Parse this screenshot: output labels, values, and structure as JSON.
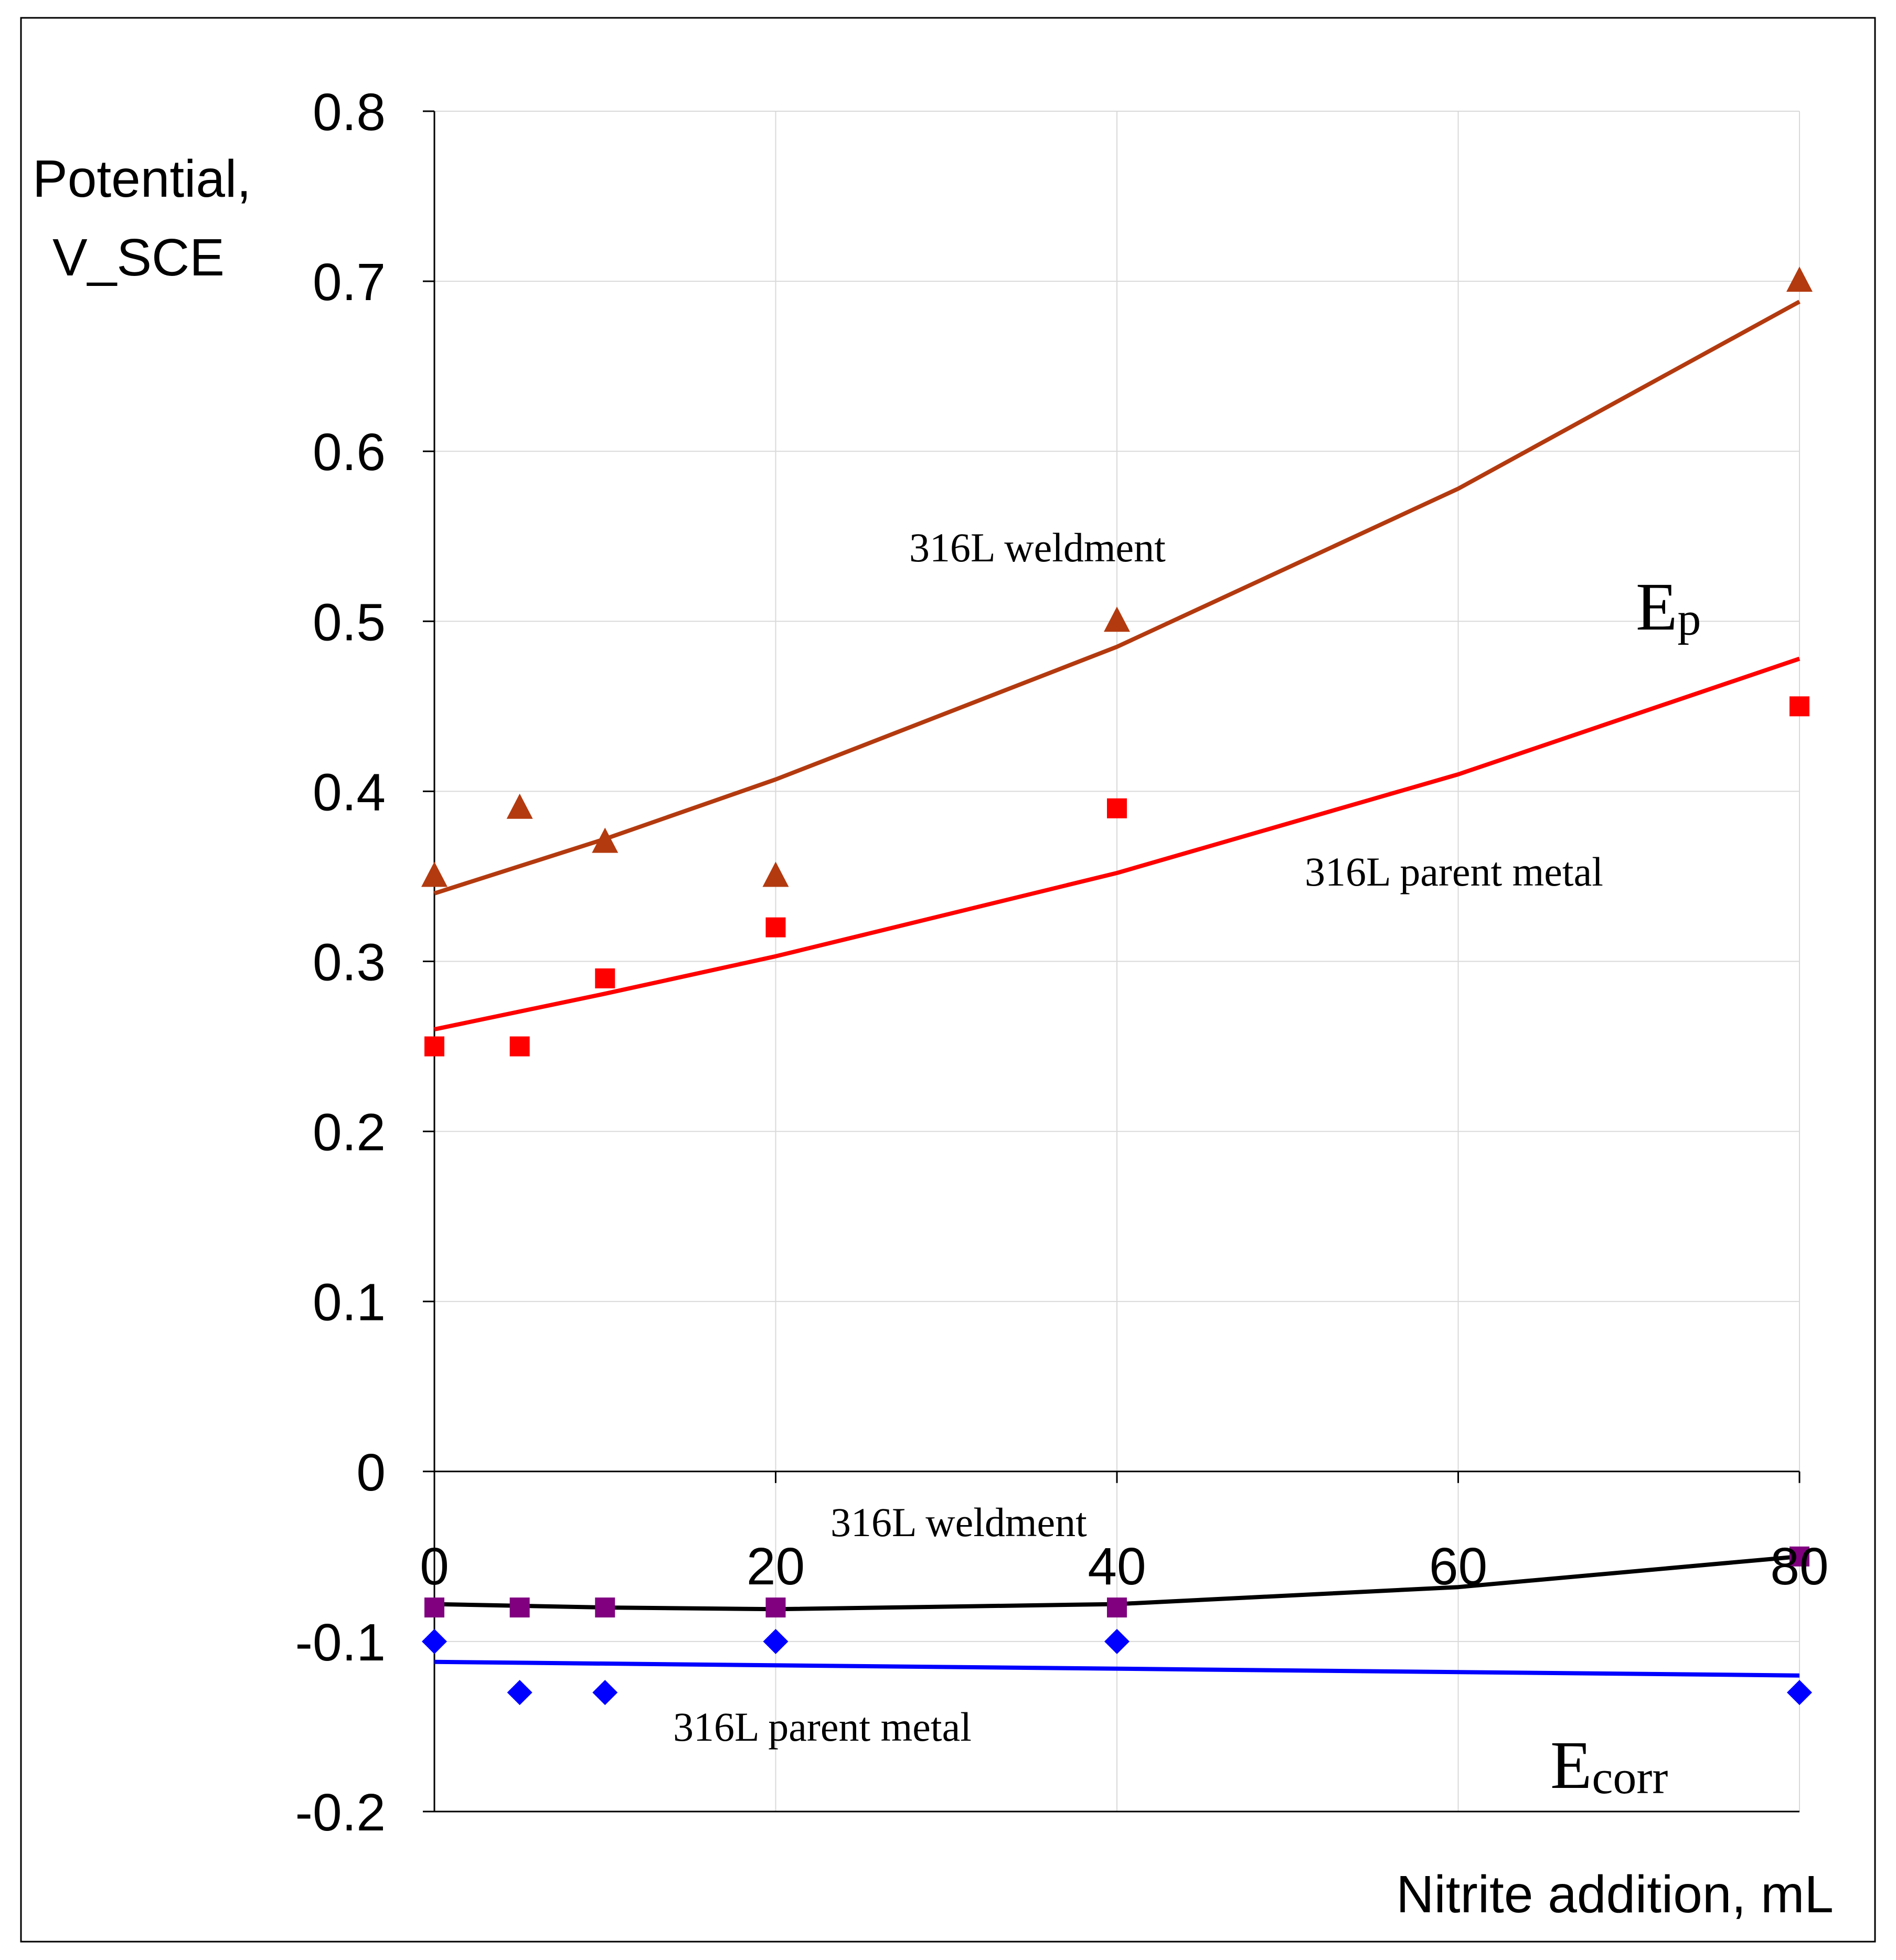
{
  "chart_data": {
    "type": "scatter",
    "title": "",
    "xlabel": "Nitrite addition, mL",
    "ylabel_line1": "Potential,",
    "ylabel_line2": "V_SCE",
    "xlim": [
      0,
      80
    ],
    "ylim": [
      -0.2,
      0.8
    ],
    "xticks": [
      0,
      20,
      40,
      60,
      80
    ],
    "yticks": [
      -0.2,
      -0.1,
      0,
      0.1,
      0.2,
      0.3,
      0.4,
      0.5,
      0.6,
      0.7,
      0.8
    ],
    "grid": true,
    "legend": "none",
    "annotations": {
      "ep_weldment": "316L weldment",
      "ep_parent": "316L parent metal",
      "ecorr_weldment": "316L weldment",
      "ecorr_parent": "316L parent metal",
      "ep_main": "E",
      "ep_sub": "p",
      "ecorr_main": "E",
      "ecorr_sub": "corr"
    },
    "series": [
      {
        "marker": "triangle",
        "color": "#b33a0f",
        "x": [
          0,
          5,
          10,
          20,
          40,
          80
        ],
        "y": [
          0.35,
          0.39,
          0.37,
          0.35,
          0.5,
          0.7
        ],
        "trend": {
          "color": "#b33a0f",
          "x": [
            0,
            10,
            20,
            40,
            60,
            80
          ],
          "y": [
            0.34,
            0.372,
            0.407,
            0.485,
            0.578,
            0.688
          ]
        }
      },
      {
        "marker": "square",
        "color": "#ff0000",
        "x": [
          0,
          5,
          10,
          20,
          40,
          80
        ],
        "y": [
          0.25,
          0.25,
          0.29,
          0.32,
          0.39,
          0.45
        ],
        "trend": {
          "color": "#ff0000",
          "x": [
            0,
            10,
            20,
            40,
            60,
            80
          ],
          "y": [
            0.26,
            0.281,
            0.303,
            0.352,
            0.41,
            0.478
          ]
        }
      },
      {
        "marker": "square",
        "color": "#800080",
        "x": [
          0,
          5,
          10,
          20,
          40,
          80
        ],
        "y": [
          -0.08,
          -0.08,
          -0.08,
          -0.08,
          -0.08,
          -0.05
        ],
        "trend": {
          "color": "#000000",
          "x": [
            0,
            10,
            20,
            40,
            60,
            80
          ],
          "y": [
            -0.078,
            -0.08,
            -0.081,
            -0.078,
            -0.068,
            -0.05
          ]
        }
      },
      {
        "marker": "diamond",
        "color": "#0000ff",
        "x": [
          0,
          5,
          10,
          20,
          40,
          80
        ],
        "y": [
          -0.1,
          -0.13,
          -0.13,
          -0.1,
          -0.1,
          -0.13
        ],
        "trend": {
          "color": "#0000ff",
          "x": [
            0,
            80
          ],
          "y": [
            -0.112,
            -0.12
          ]
        }
      }
    ]
  }
}
